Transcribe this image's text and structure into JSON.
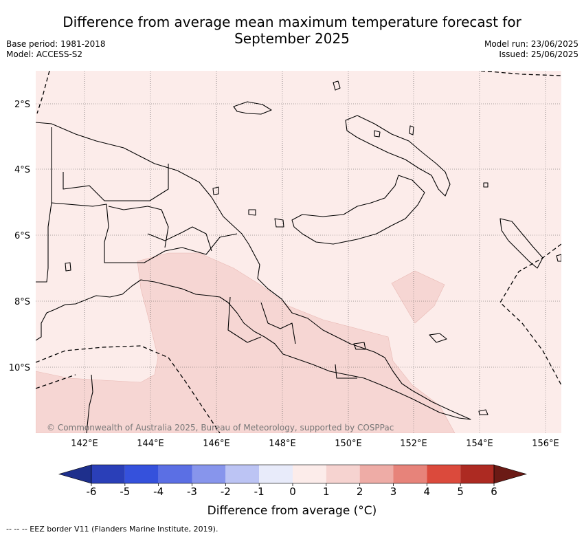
{
  "title_line1": "Difference from average mean maximum temperature forecast for",
  "title_line2": "September 2025",
  "base_period": "Base period: 1981-2018",
  "model": "Model: ACCESS-S2",
  "model_run": "Model run: 23/06/2025",
  "issued": "Issued: 25/06/2025",
  "copyright": "© Commonwealth of Australia 2025, Bureau of Meteorology, supported by COSPPac",
  "lon_ticks": [
    "142°E",
    "144°E",
    "146°E",
    "148°E",
    "150°E",
    "152°E",
    "154°E",
    "156°E"
  ],
  "lat_ticks": [
    "2°S",
    "4°S",
    "6°S",
    "8°S",
    "10°S"
  ],
  "colorbar": {
    "ticks": [
      "-6",
      "-5",
      "-4",
      "-3",
      "-2",
      "-1",
      "0",
      "1",
      "2",
      "3",
      "4",
      "5",
      "6"
    ],
    "colors": [
      "#1e2f8c",
      "#2a3fb8",
      "#3551dc",
      "#5b6fe4",
      "#8795ec",
      "#bcc4f4",
      "#e8ebfa",
      "#fcecea",
      "#f6d3d0",
      "#eeaca6",
      "#e7837a",
      "#db4a3c",
      "#ad2a22",
      "#6b1a15"
    ],
    "label": "Difference from average (°C)"
  },
  "footnote": "-- -- -- EEZ border V11 (Flanders Marine Institute, 2019).",
  "map_colors": {
    "background": "#fcecea",
    "warm_area": "#f6d6d3"
  }
}
